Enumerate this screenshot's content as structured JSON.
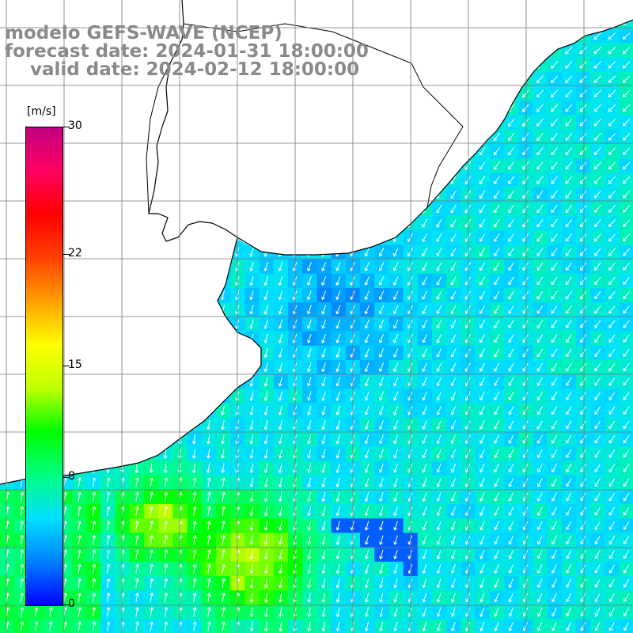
{
  "title": {
    "line1": "modelo GEFS-WAVE (NCEP)",
    "line2": "forecast date: 2024-01-31 18:00:00",
    "line3": "    valid date: 2024-02-12 18:00:00"
  },
  "colorbar": {
    "unit": "[m/s]",
    "ticks": [
      "30",
      "22",
      "15",
      "8",
      "0"
    ],
    "tick_values": [
      30,
      22,
      15,
      8,
      0
    ],
    "range": [
      0,
      30
    ],
    "colors": [
      "#0000ff",
      "#0080ff",
      "#00e0ff",
      "#00ff80",
      "#00ff00",
      "#c0ff00",
      "#ffff00",
      "#ffa000",
      "#ff4000",
      "#ff0000",
      "#ff0060",
      "#c00080"
    ]
  },
  "map": {
    "type": "wind-vector field",
    "field": "10 m wind speed",
    "field_colors": {
      "ocean_base": "#00aaff",
      "land": "#ffffff",
      "coast": "#000000",
      "grid": "#777777",
      "arrow": "#ffffff"
    }
  }
}
